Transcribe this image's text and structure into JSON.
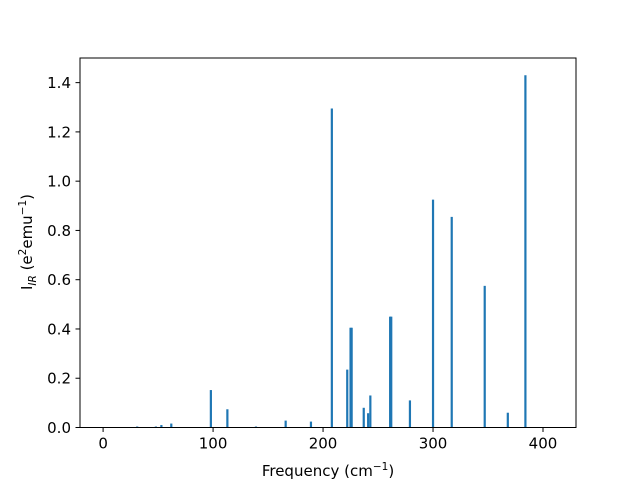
{
  "chart_data": {
    "type": "bar",
    "xlabel": "Frequency",
    "xlabel_unit": "(cm",
    "xlabel_unit_exp": "−1",
    "xlabel_unit_close": ")",
    "ylabel_main": "I",
    "ylabel_sub": "IR",
    "ylabel_unit_a": " (e",
    "ylabel_unit_a_exp": "2",
    "ylabel_unit_b": "emu",
    "ylabel_unit_b_exp": "−1",
    "ylabel_unit_close": ")",
    "xlim": [
      -21,
      430
    ],
    "ylim": [
      0,
      1.5
    ],
    "xticks": [
      0,
      100,
      200,
      300,
      400
    ],
    "xtick_labels": [
      "0",
      "100",
      "200",
      "300",
      "400"
    ],
    "yticks": [
      0.0,
      0.2,
      0.4,
      0.6,
      0.8,
      1.0,
      1.2,
      1.4
    ],
    "ytick_labels": [
      "0.0",
      "0.2",
      "0.4",
      "0.6",
      "0.8",
      "1.0",
      "1.2",
      "1.4"
    ],
    "bar_width": 2,
    "color": "#1f77b4",
    "grid": false,
    "x": [
      31,
      48,
      53,
      62,
      98,
      113,
      139,
      166,
      189,
      208,
      222,
      225,
      226,
      237,
      241,
      243,
      261,
      262,
      279,
      300,
      317,
      347,
      368,
      384
    ],
    "values": [
      0.004,
      0.004,
      0.01,
      0.016,
      0.152,
      0.074,
      0.004,
      0.028,
      0.024,
      1.295,
      0.235,
      0.405,
      0.405,
      0.08,
      0.058,
      0.13,
      0.45,
      0.45,
      0.11,
      0.925,
      0.855,
      0.575,
      0.06,
      1.43
    ]
  }
}
